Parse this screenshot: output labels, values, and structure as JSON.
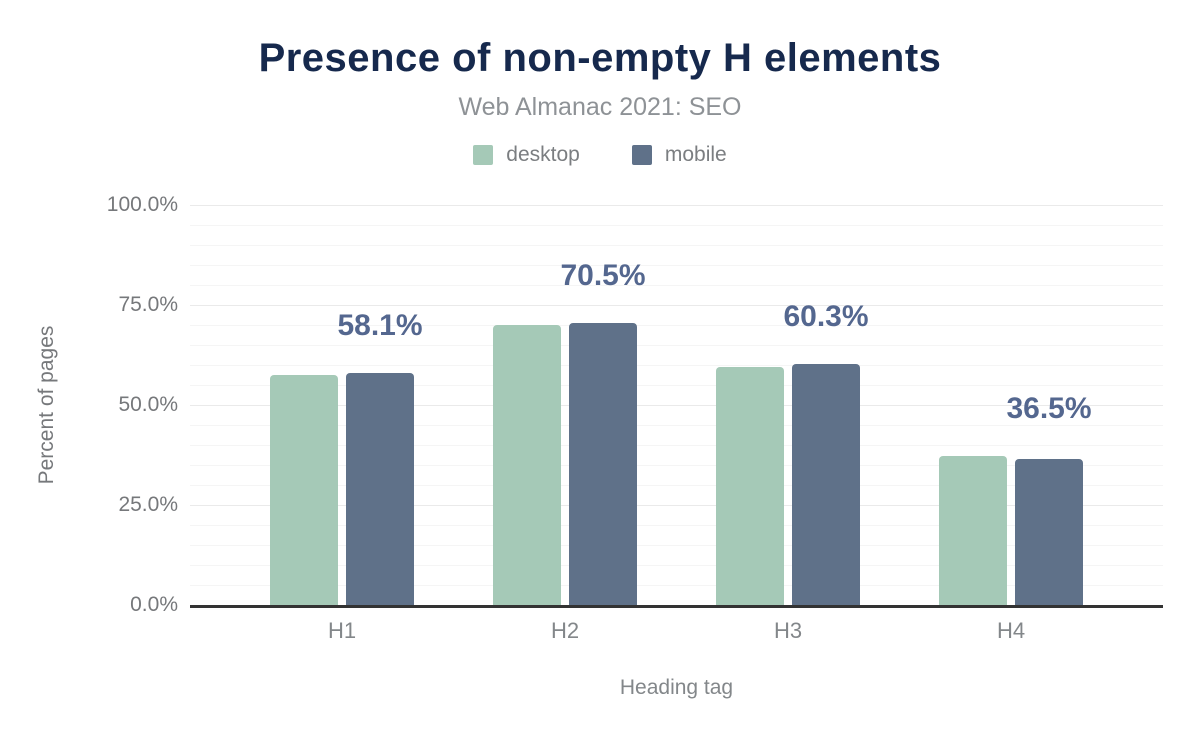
{
  "header": {
    "title": "Presence of non-empty H elements",
    "subtitle": "Web Almanac 2021: SEO"
  },
  "legend": [
    {
      "label": "desktop",
      "color": "#a5c9b7"
    },
    {
      "label": "mobile",
      "color": "#5f7189"
    }
  ],
  "colors": {
    "title": "#16294d",
    "subtitle": "#8e9296",
    "axis_text": "#76787b",
    "annotation": "#54678f",
    "axis_line": "#333333",
    "desktop": "#a5c9b7",
    "mobile": "#5f7189"
  },
  "chart_data": {
    "type": "bar",
    "title": "Presence of non-empty H elements",
    "subtitle": "Web Almanac 2021: SEO",
    "categories": [
      "H1",
      "H2",
      "H3",
      "H4"
    ],
    "series": [
      {
        "name": "desktop",
        "color": "#a5c9b7",
        "values": [
          57.5,
          70.1,
          59.5,
          37.3
        ]
      },
      {
        "name": "mobile",
        "color": "#5f7189",
        "values": [
          58.1,
          70.5,
          60.3,
          36.5
        ]
      }
    ],
    "annotations": {
      "series": "mobile",
      "labels": [
        "58.1%",
        "70.5%",
        "60.3%",
        "36.5%"
      ]
    },
    "xlabel": "Heading tag",
    "ylabel": "Percent of pages",
    "ylim": [
      0,
      100
    ],
    "yticks": [
      {
        "value": 0,
        "label": "0.0%"
      },
      {
        "value": 25,
        "label": "25.0%"
      },
      {
        "value": 50,
        "label": "50.0%"
      },
      {
        "value": 75,
        "label": "75.0%"
      },
      {
        "value": 100,
        "label": "100.0%"
      }
    ],
    "grid": {
      "minor_step": 5,
      "major_step": 25,
      "visible": true
    },
    "legend_position": "top"
  }
}
